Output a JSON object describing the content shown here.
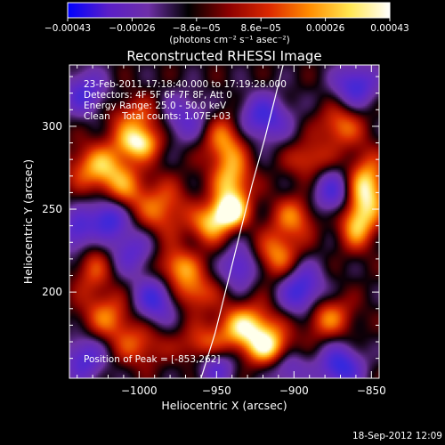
{
  "chart_data": {
    "type": "heatmap",
    "title": "Reconstructed RHESSI Image",
    "xlabel": "Heliocentric X (arcsec)",
    "ylabel": "Heliocentric Y (arcsec)",
    "xlim": [
      -1045,
      -845
    ],
    "ylim": [
      148,
      337
    ],
    "x_ticks": [
      {
        "value": -1000,
        "label": "−1000"
      },
      {
        "value": -950,
        "label": "−950"
      },
      {
        "value": -900,
        "label": "−900"
      },
      {
        "value": -850,
        "label": "−850"
      }
    ],
    "y_ticks": [
      {
        "value": 200,
        "label": "200"
      },
      {
        "value": 250,
        "label": "250"
      },
      {
        "value": 300,
        "label": "300"
      }
    ],
    "colorbar": {
      "range": [
        -0.00043,
        0.00043
      ],
      "tick_labels": [
        "−0.00043",
        "−0.00026",
        "−8.6e−05",
        "8.6e−05",
        "0.00026",
        "0.00043"
      ],
      "unit_label": "(photons cm⁻² s⁻¹ asec⁻²)",
      "colors": [
        "#0000ff",
        "#5a1ec8",
        "#6e2fa8",
        "#000000",
        "#8c0000",
        "#dc2800",
        "#ff8c00",
        "#ffe650",
        "#ffffff"
      ]
    },
    "info_lines": [
      "23-Feb-2011 17:18:40.000 to 17:19:28.000",
      "Detectors: 4F 5F 6F 7F 8F, Att 0",
      "Energy Range: 25.0 - 50.0 keV",
      "Clean    Total counts: 1.07E+03"
    ],
    "peak_label": "Position of Peak = [-853,262]",
    "limb_curve": [
      [
        -960,
        148
      ],
      [
        -951,
        175
      ],
      [
        -943,
        205
      ],
      [
        -935,
        235
      ],
      [
        -927,
        265
      ],
      [
        -919,
        292
      ],
      [
        -912,
        318
      ],
      [
        -907,
        337
      ]
    ],
    "intensity_blobs": [
      {
        "x": -1025,
        "y": 275,
        "v": 0.8,
        "sx": 14,
        "sy": 10
      },
      {
        "x": -1010,
        "y": 260,
        "v": 0.5,
        "sx": 10,
        "sy": 10
      },
      {
        "x": -995,
        "y": 305,
        "v": 0.7,
        "sx": 16,
        "sy": 9
      },
      {
        "x": -1000,
        "y": 290,
        "v": 0.9,
        "sx": 10,
        "sy": 7
      },
      {
        "x": -985,
        "y": 250,
        "v": 0.6,
        "sx": 12,
        "sy": 12
      },
      {
        "x": -1030,
        "y": 215,
        "v": 0.5,
        "sx": 9,
        "sy": 12
      },
      {
        "x": -1020,
        "y": 185,
        "v": 0.6,
        "sx": 12,
        "sy": 10
      },
      {
        "x": -1000,
        "y": 168,
        "v": 0.5,
        "sx": 12,
        "sy": 9
      },
      {
        "x": -975,
        "y": 215,
        "v": 0.7,
        "sx": 10,
        "sy": 8
      },
      {
        "x": -965,
        "y": 200,
        "v": 0.6,
        "sx": 10,
        "sy": 8
      },
      {
        "x": -945,
        "y": 292,
        "v": 0.7,
        "sx": 10,
        "sy": 12
      },
      {
        "x": -940,
        "y": 265,
        "v": 0.8,
        "sx": 9,
        "sy": 12
      },
      {
        "x": -942,
        "y": 248,
        "v": 1.0,
        "sx": 8,
        "sy": 7
      },
      {
        "x": -955,
        "y": 240,
        "v": 0.7,
        "sx": 8,
        "sy": 8
      },
      {
        "x": -930,
        "y": 178,
        "v": 1.0,
        "sx": 14,
        "sy": 10
      },
      {
        "x": -915,
        "y": 165,
        "v": 0.8,
        "sx": 10,
        "sy": 8
      },
      {
        "x": -910,
        "y": 222,
        "v": 0.7,
        "sx": 10,
        "sy": 10
      },
      {
        "x": -900,
        "y": 245,
        "v": 0.6,
        "sx": 10,
        "sy": 9
      },
      {
        "x": -890,
        "y": 280,
        "v": 0.5,
        "sx": 10,
        "sy": 8
      },
      {
        "x": -870,
        "y": 300,
        "v": 0.6,
        "sx": 10,
        "sy": 9
      },
      {
        "x": -853,
        "y": 262,
        "v": 1.0,
        "sx": 9,
        "sy": 14
      },
      {
        "x": -860,
        "y": 240,
        "v": 0.7,
        "sx": 8,
        "sy": 10
      },
      {
        "x": -880,
        "y": 185,
        "v": 0.7,
        "sx": 12,
        "sy": 9
      },
      {
        "x": -960,
        "y": 168,
        "v": 0.5,
        "sx": 10,
        "sy": 8
      },
      {
        "x": -975,
        "y": 305,
        "v": -0.8,
        "sx": 14,
        "sy": 10
      },
      {
        "x": -1035,
        "y": 320,
        "v": -0.7,
        "sx": 10,
        "sy": 10
      },
      {
        "x": -1020,
        "y": 245,
        "v": -0.9,
        "sx": 9,
        "sy": 9
      },
      {
        "x": -1040,
        "y": 235,
        "v": -0.7,
        "sx": 8,
        "sy": 10
      },
      {
        "x": -990,
        "y": 195,
        "v": -0.8,
        "sx": 10,
        "sy": 10
      },
      {
        "x": -1035,
        "y": 160,
        "v": -0.7,
        "sx": 10,
        "sy": 10
      },
      {
        "x": -920,
        "y": 305,
        "v": -0.8,
        "sx": 12,
        "sy": 10
      },
      {
        "x": -935,
        "y": 215,
        "v": -0.7,
        "sx": 8,
        "sy": 9
      },
      {
        "x": -895,
        "y": 200,
        "v": -0.9,
        "sx": 10,
        "sy": 12
      },
      {
        "x": -875,
        "y": 260,
        "v": -0.7,
        "sx": 9,
        "sy": 10
      },
      {
        "x": -870,
        "y": 155,
        "v": -0.9,
        "sx": 10,
        "sy": 9
      },
      {
        "x": -905,
        "y": 155,
        "v": -0.6,
        "sx": 9,
        "sy": 8
      },
      {
        "x": -950,
        "y": 155,
        "v": -0.6,
        "sx": 9,
        "sy": 8
      },
      {
        "x": -860,
        "y": 325,
        "v": -0.8,
        "sx": 10,
        "sy": 9
      },
      {
        "x": -1005,
        "y": 225,
        "v": -0.6,
        "sx": 10,
        "sy": 10
      }
    ]
  },
  "footer": {
    "timestamp": "18-Sep-2012 12:09"
  }
}
